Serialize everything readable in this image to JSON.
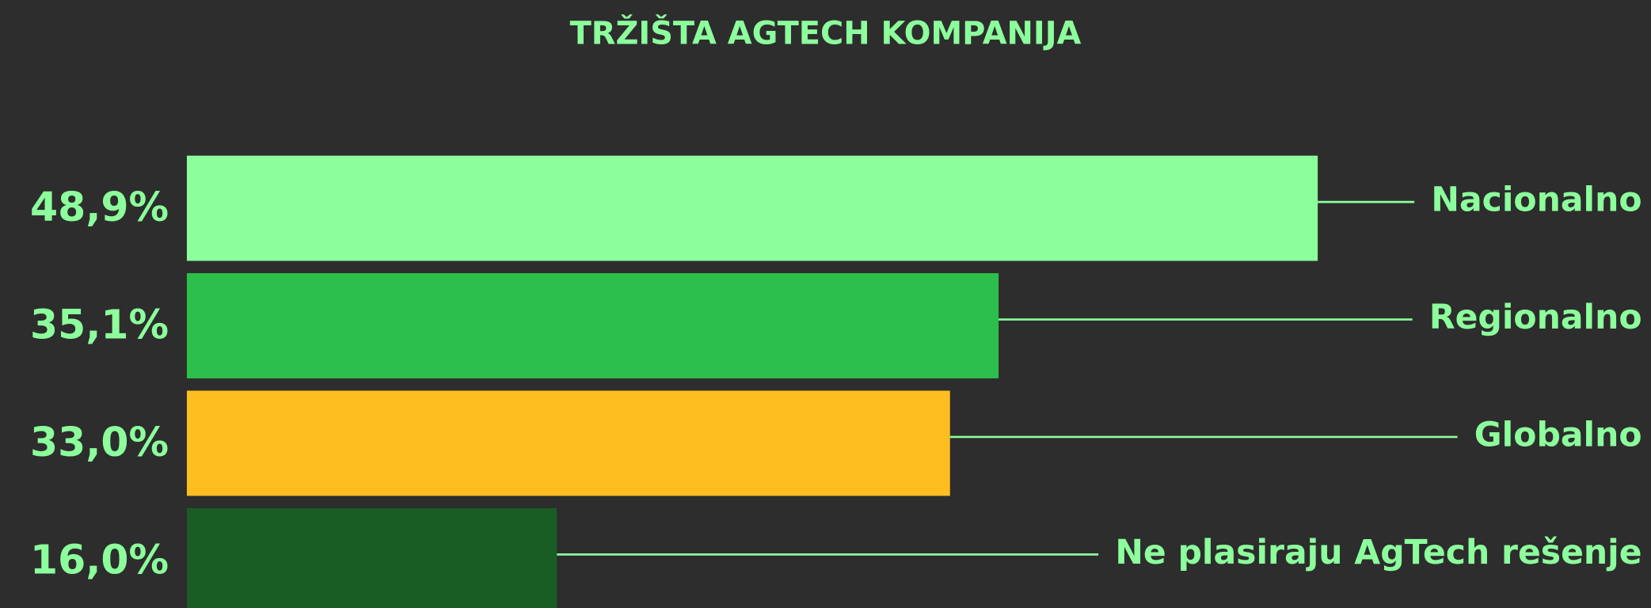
{
  "chart_data": {
    "type": "hbar",
    "title": "TRŽIŠTA AGTECH KOMPANIJA",
    "categories": [
      "Nacionalno",
      "Regionalno",
      "Globalno",
      "Ne plasiraju AgTech rešenje"
    ],
    "values": [
      48.9,
      35.1,
      33.0,
      16.0
    ],
    "value_labels": [
      "48,9%",
      "35,1%",
      "33,0%",
      "16,0%"
    ],
    "colors": [
      "#8cff9c",
      "#2cbf4b",
      "#ffbe1f",
      "#195c24"
    ]
  }
}
